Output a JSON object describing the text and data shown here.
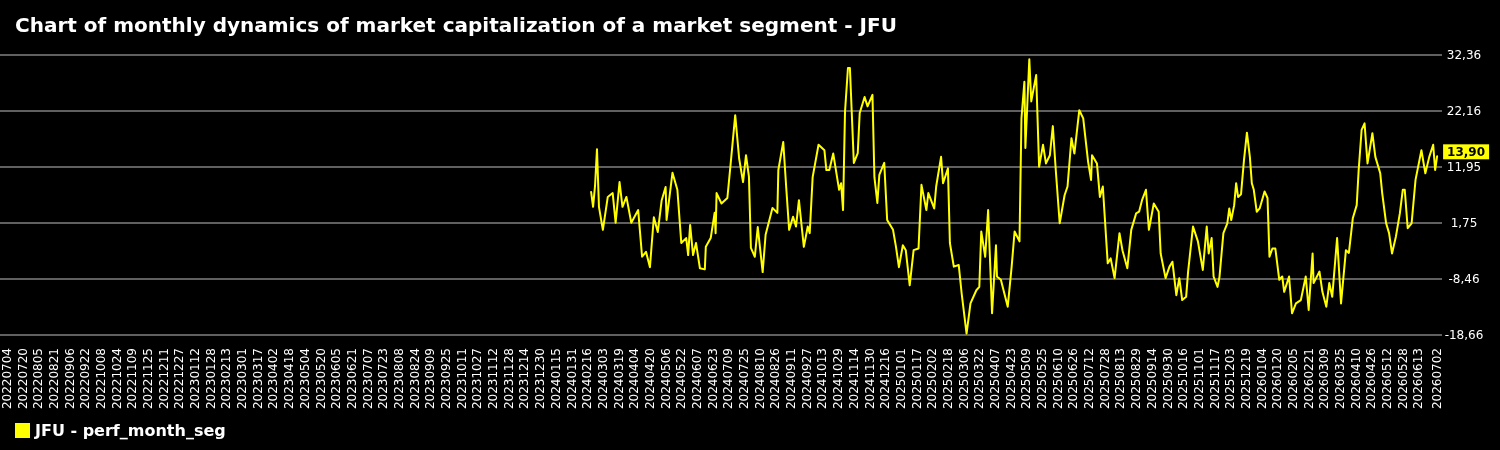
{
  "chart_data": {
    "type": "line",
    "title": "Chart of monthly dynamics of market capitalization of a market segment - JFU",
    "x": [
      "2024-02-20",
      "2024-02-22",
      "2024-02-24",
      "2024-02-26",
      "2024-02-28",
      "2024-03-03",
      "2024-03-08",
      "2024-03-13",
      "2024-03-16",
      "2024-03-20",
      "2024-03-23",
      "2024-03-27",
      "2024-04-01",
      "2024-04-08",
      "2024-04-12",
      "2024-04-16",
      "2024-04-20",
      "2024-04-24",
      "2024-04-28",
      "2024-05-02",
      "2024-05-06",
      "2024-05-07",
      "2024-05-13",
      "2024-05-18",
      "2024-05-22",
      "2024-05-27",
      "2024-05-29",
      "2024-05-31",
      "2024-06-03",
      "2024-06-06",
      "2024-06-10",
      "2024-06-15",
      "2024-06-16",
      "2024-06-21",
      "2024-06-25",
      "2024-06-26",
      "2024-06-27",
      "2024-07-02",
      "2024-07-08",
      "2024-07-12",
      "2024-07-16",
      "2024-07-20",
      "2024-07-24",
      "2024-07-27",
      "2024-07-30",
      "2024-08-01",
      "2024-08-05",
      "2024-08-08",
      "2024-08-13",
      "2024-08-16",
      "2024-08-23",
      "2024-08-28",
      "2024-08-29",
      "2024-09-03",
      "2024-09-06",
      "2024-09-09",
      "2024-09-13",
      "2024-09-16",
      "2024-09-19",
      "2024-09-24",
      "2024-09-28",
      "2024-09-30",
      "2024-10-03",
      "2024-10-09",
      "2024-10-15",
      "2024-10-17",
      "2024-10-20",
      "2024-10-24",
      "2024-10-30",
      "2024-11-01",
      "2024-11-03",
      "2024-11-05",
      "2024-11-08",
      "2024-11-10",
      "2024-11-14",
      "2024-11-18",
      "2024-11-20",
      "2024-11-25",
      "2024-11-28",
      "2024-12-03",
      "2024-12-05",
      "2024-12-08",
      "2024-12-10",
      "2024-12-15",
      "2024-12-18",
      "2024-12-24",
      "2024-12-27",
      "2024-12-30",
      "2025-01-03",
      "2025-01-06",
      "2025-01-10",
      "2025-01-14",
      "2025-01-19",
      "2025-01-22",
      "2025-01-27",
      "2025-01-29",
      "2025-02-04",
      "2025-02-06",
      "2025-02-11",
      "2025-02-13",
      "2025-02-18",
      "2025-02-20",
      "2025-02-24",
      "2025-03-01",
      "2025-03-04",
      "2025-03-09",
      "2025-03-13",
      "2025-03-19",
      "2025-03-22",
      "2025-03-24",
      "2025-03-28",
      "2025-03-31",
      "2025-04-04",
      "2025-04-08",
      "2025-04-09",
      "2025-04-13",
      "2025-04-20",
      "2025-04-24",
      "2025-04-27",
      "2025-05-02",
      "2025-05-04",
      "2025-05-07",
      "2025-05-08",
      "2025-05-12",
      "2025-05-14",
      "2025-05-19",
      "2025-05-22",
      "2025-05-26",
      "2025-05-29",
      "2025-06-02",
      "2025-06-05",
      "2025-06-08",
      "2025-06-12",
      "2025-06-17",
      "2025-06-20",
      "2025-06-24",
      "2025-06-27",
      "2025-07-02",
      "2025-07-06",
      "2025-07-11",
      "2025-07-14",
      "2025-07-15",
      "2025-07-20",
      "2025-07-23",
      "2025-07-26",
      "2025-07-31",
      "2025-08-03",
      "2025-08-07",
      "2025-08-12",
      "2025-08-15",
      "2025-08-20",
      "2025-08-24",
      "2025-08-29",
      "2025-09-01",
      "2025-09-04",
      "2025-09-08",
      "2025-09-11",
      "2025-09-16",
      "2025-09-21",
      "2025-09-23",
      "2025-09-28",
      "2025-10-02",
      "2025-10-05",
      "2025-10-09",
      "2025-10-12",
      "2025-10-15",
      "2025-10-19",
      "2025-10-21",
      "2025-10-26",
      "2025-10-31",
      "2025-11-05",
      "2025-11-09",
      "2025-11-11",
      "2025-11-14",
      "2025-11-16",
      "2025-11-20",
      "2025-11-22",
      "2025-11-26",
      "2025-11-30",
      "2025-12-02",
      "2025-12-04",
      "2025-12-07",
      "2025-12-09",
      "2025-12-11",
      "2025-12-14",
      "2025-12-17",
      "2025-12-20",
      "2025-12-23",
      "2025-12-25",
      "2025-12-27",
      "2025-12-30",
      "2026-01-02",
      "2026-01-07",
      "2026-01-10",
      "2026-01-12",
      "2026-01-15",
      "2026-01-18",
      "2026-01-22",
      "2026-01-25",
      "2026-01-27",
      "2026-02-01",
      "2026-02-04",
      "2026-02-08",
      "2026-02-13",
      "2026-02-18",
      "2026-02-21",
      "2026-02-25",
      "2026-02-26",
      "2026-03-04",
      "2026-03-07",
      "2026-03-11",
      "2026-03-14",
      "2026-03-17",
      "2026-03-22",
      "2026-03-26",
      "2026-03-31",
      "2026-04-03",
      "2026-04-07",
      "2026-04-11",
      "2026-04-13",
      "2026-04-16",
      "2026-04-19",
      "2026-04-22",
      "2026-04-27",
      "2026-04-30",
      "2026-05-05",
      "2026-05-07",
      "2026-05-11",
      "2026-05-14",
      "2026-05-17",
      "2026-05-21",
      "2026-05-25",
      "2026-05-28",
      "2026-05-30",
      "2026-06-02",
      "2026-06-06",
      "2026-06-10",
      "2026-06-16",
      "2026-06-20",
      "2026-06-24",
      "2026-06-28",
      "2026-06-30",
      "2026-07-02"
    ],
    "series": [
      {
        "name": "JFU - perf_month_seg",
        "color": "#ffff00",
        "values": [
          7.4,
          4.7,
          8.5,
          15.2,
          4.7,
          0.5,
          6.5,
          7.2,
          1.8,
          9.2,
          4.7,
          6.5,
          1.8,
          4.1,
          -4.4,
          -3.5,
          -6.3,
          2.8,
          0.1,
          5.9,
          8.3,
          2.3,
          10.9,
          7.8,
          -1.9,
          -1.0,
          -4.1,
          1.4,
          -4.1,
          -1.9,
          -6.5,
          -6.7,
          -2.6,
          -1.0,
          3.6,
          -0.1,
          7.2,
          5.3,
          6.3,
          13.8,
          21.4,
          13.5,
          9.2,
          14.1,
          10.2,
          -2.8,
          -4.4,
          1.0,
          -7.2,
          -0.4,
          4.5,
          3.6,
          11.4,
          16.5,
          8.3,
          0.5,
          2.9,
          1.1,
          5.9,
          -2.6,
          1.1,
          -0.1,
          10.1,
          16.0,
          15.0,
          11.4,
          11.4,
          14.4,
          7.8,
          9.0,
          4.1,
          22.0,
          30.0,
          30.0,
          12.7,
          14.5,
          21.8,
          24.7,
          23.0,
          25.1,
          10.1,
          5.4,
          10.5,
          12.7,
          2.3,
          0.5,
          -2.6,
          -6.3,
          -2.3,
          -3.2,
          -9.6,
          -3.2,
          -2.9,
          8.7,
          4.1,
          7.2,
          4.4,
          8.4,
          13.8,
          9.0,
          11.7,
          -1.9,
          -6.2,
          -5.9,
          -11.1,
          -18.4,
          -12.9,
          -10.5,
          -9.9,
          0.2,
          -4.4,
          4.1,
          -14.7,
          -2.3,
          -8.0,
          -8.6,
          -13.5,
          -6.2,
          0.2,
          -1.6,
          20.8,
          27.5,
          15.4,
          31.6,
          23.9,
          28.7,
          12.0,
          16.0,
          12.6,
          14.1,
          19.4,
          11.4,
          1.7,
          6.8,
          8.4,
          17.2,
          14.4,
          22.3,
          20.8,
          12.9,
          9.6,
          14.1,
          12.6,
          6.5,
          8.4,
          -5.6,
          -4.7,
          -8.3,
          -0.1,
          -3.2,
          -6.5,
          0.5,
          3.5,
          3.8,
          5.9,
          7.8,
          0.5,
          5.3,
          3.8,
          -3.8,
          -8.3,
          -6.2,
          -5.3,
          -11.4,
          -8.3,
          -12.3,
          -11.7,
          -7.1,
          1.1,
          -1.6,
          -6.8,
          1.1,
          -3.8,
          -1.0,
          -8.0,
          -9.9,
          -8.1,
          -0.1,
          1.7,
          4.4,
          2.3,
          5.0,
          9.0,
          6.5,
          7.0,
          13.2,
          18.2,
          13.8,
          9.0,
          7.8,
          3.8,
          4.4,
          7.5,
          6.3,
          -4.4,
          -2.9,
          -2.9,
          -8.6,
          -8.0,
          -10.8,
          -8.0,
          -14.7,
          -12.9,
          -12.3,
          -8.0,
          -14.1,
          -3.8,
          -9.2,
          -7.1,
          -10.8,
          -13.5,
          -9.2,
          -11.7,
          -1.0,
          -12.9,
          -3.2,
          -3.7,
          2.6,
          5.0,
          11.4,
          18.7,
          19.9,
          12.6,
          18.1,
          13.8,
          10.8,
          7.2,
          1.7,
          -0.1,
          -3.8,
          -0.7,
          3.5,
          7.8,
          7.8,
          0.8,
          1.7,
          9.6,
          15.0,
          10.8,
          13.8,
          16.0,
          11.4,
          13.9
        ]
      }
    ],
    "xlim": [
      "2022-06-27",
      "2026-07-07"
    ],
    "xticks": [
      {
        "value": "2022-07-04",
        "label": "20220704"
      },
      {
        "value": "2022-07-20",
        "label": "20220720"
      },
      {
        "value": "2022-08-05",
        "label": "20220805"
      },
      {
        "value": "2022-08-21",
        "label": "20220821"
      },
      {
        "value": "2022-09-06",
        "label": "20220906"
      },
      {
        "value": "2022-09-22",
        "label": "20220922"
      },
      {
        "value": "2022-10-08",
        "label": "20221008"
      },
      {
        "value": "2022-10-24",
        "label": "20221024"
      },
      {
        "value": "2022-11-09",
        "label": "20221109"
      },
      {
        "value": "2022-11-25",
        "label": "20221125"
      },
      {
        "value": "2022-12-11",
        "label": "20221211"
      },
      {
        "value": "2022-12-27",
        "label": "20221227"
      },
      {
        "value": "2023-01-12",
        "label": "20230112"
      },
      {
        "value": "2023-01-28",
        "label": "20230128"
      },
      {
        "value": "2023-02-13",
        "label": "20230213"
      },
      {
        "value": "2023-03-01",
        "label": "20230301"
      },
      {
        "value": "2023-03-17",
        "label": "20230317"
      },
      {
        "value": "2023-04-02",
        "label": "20230402"
      },
      {
        "value": "2023-04-18",
        "label": "20230418"
      },
      {
        "value": "2023-05-04",
        "label": "20230504"
      },
      {
        "value": "2023-05-20",
        "label": "20230520"
      },
      {
        "value": "2023-06-05",
        "label": "20230605"
      },
      {
        "value": "2023-06-21",
        "label": "20230621"
      },
      {
        "value": "2023-07-07",
        "label": "20230707"
      },
      {
        "value": "2023-07-23",
        "label": "20230723"
      },
      {
        "value": "2023-08-08",
        "label": "20230808"
      },
      {
        "value": "2023-08-24",
        "label": "20230824"
      },
      {
        "value": "2023-09-09",
        "label": "20230909"
      },
      {
        "value": "2023-09-25",
        "label": "20230925"
      },
      {
        "value": "2023-10-11",
        "label": "20231011"
      },
      {
        "value": "2023-10-27",
        "label": "20231027"
      },
      {
        "value": "2023-11-12",
        "label": "20231112"
      },
      {
        "value": "2023-11-28",
        "label": "20231128"
      },
      {
        "value": "2023-12-14",
        "label": "20231214"
      },
      {
        "value": "2023-12-30",
        "label": "20231230"
      },
      {
        "value": "2024-01-15",
        "label": "20240115"
      },
      {
        "value": "2024-01-31",
        "label": "20240131"
      },
      {
        "value": "2024-02-16",
        "label": "20240216"
      },
      {
        "value": "2024-03-03",
        "label": "20240303"
      },
      {
        "value": "2024-03-19",
        "label": "20240319"
      },
      {
        "value": "2024-04-04",
        "label": "20240404"
      },
      {
        "value": "2024-04-20",
        "label": "20240420"
      },
      {
        "value": "2024-05-06",
        "label": "20240506"
      },
      {
        "value": "2024-05-22",
        "label": "20240522"
      },
      {
        "value": "2024-06-07",
        "label": "20240607"
      },
      {
        "value": "2024-06-23",
        "label": "20240623"
      },
      {
        "value": "2024-07-09",
        "label": "20240709"
      },
      {
        "value": "2024-07-25",
        "label": "20240725"
      },
      {
        "value": "2024-08-10",
        "label": "20240810"
      },
      {
        "value": "2024-08-26",
        "label": "20240826"
      },
      {
        "value": "2024-09-11",
        "label": "20240911"
      },
      {
        "value": "2024-09-27",
        "label": "20240927"
      },
      {
        "value": "2024-10-13",
        "label": "20241013"
      },
      {
        "value": "2024-10-29",
        "label": "20241029"
      },
      {
        "value": "2024-11-14",
        "label": "20241114"
      },
      {
        "value": "2024-11-30",
        "label": "20241130"
      },
      {
        "value": "2024-12-16",
        "label": "20241216"
      },
      {
        "value": "2025-01-01",
        "label": "20250101"
      },
      {
        "value": "2025-01-17",
        "label": "20250117"
      },
      {
        "value": "2025-02-02",
        "label": "20250202"
      },
      {
        "value": "2025-02-18",
        "label": "20250218"
      },
      {
        "value": "2025-03-06",
        "label": "20250306"
      },
      {
        "value": "2025-03-22",
        "label": "20250322"
      },
      {
        "value": "2025-04-07",
        "label": "20250407"
      },
      {
        "value": "2025-04-23",
        "label": "20250423"
      },
      {
        "value": "2025-05-09",
        "label": "20250509"
      },
      {
        "value": "2025-05-25",
        "label": "20250525"
      },
      {
        "value": "2025-06-10",
        "label": "20250610"
      },
      {
        "value": "2025-06-26",
        "label": "20250626"
      },
      {
        "value": "2025-07-12",
        "label": "20250712"
      },
      {
        "value": "2025-07-28",
        "label": "20250728"
      },
      {
        "value": "2025-08-13",
        "label": "20250813"
      },
      {
        "value": "2025-08-29",
        "label": "20250829"
      },
      {
        "value": "2025-09-14",
        "label": "20250914"
      },
      {
        "value": "2025-09-30",
        "label": "20250930"
      },
      {
        "value": "2025-10-16",
        "label": "20251016"
      },
      {
        "value": "2025-11-01",
        "label": "20251101"
      },
      {
        "value": "2025-11-17",
        "label": "20251117"
      },
      {
        "value": "2025-12-03",
        "label": "20251203"
      },
      {
        "value": "2025-12-19",
        "label": "20251219"
      },
      {
        "value": "2026-01-04",
        "label": "20260104"
      },
      {
        "value": "2026-01-20",
        "label": "20260120"
      },
      {
        "value": "2026-02-05",
        "label": "20260205"
      },
      {
        "value": "2026-02-21",
        "label": "20260221"
      },
      {
        "value": "2026-03-09",
        "label": "20260309"
      },
      {
        "value": "2026-03-25",
        "label": "20260325"
      },
      {
        "value": "2026-04-10",
        "label": "20260410"
      },
      {
        "value": "2026-04-26",
        "label": "20260426"
      },
      {
        "value": "2026-05-12",
        "label": "20260512"
      },
      {
        "value": "2026-05-28",
        "label": "20260528"
      },
      {
        "value": "2026-06-13",
        "label": "20260613"
      },
      {
        "value": "2026-07-02",
        "label": "20260702"
      }
    ],
    "ylim": [
      -18.66,
      32.36
    ],
    "yticks": [
      {
        "value": -18.66,
        "label": "-18,66"
      },
      {
        "value": -8.46,
        "label": "-8,46"
      },
      {
        "value": 1.75,
        "label": "1,75"
      },
      {
        "value": 11.95,
        "label": "11,95"
      },
      {
        "value": 22.16,
        "label": "22,16"
      },
      {
        "value": 32.36,
        "label": "32,36"
      }
    ],
    "grid": "y",
    "legend": "bottom left",
    "annotations": [
      {
        "text": "13,90",
        "x": "2026-07-02",
        "y": 13.9
      }
    ]
  }
}
